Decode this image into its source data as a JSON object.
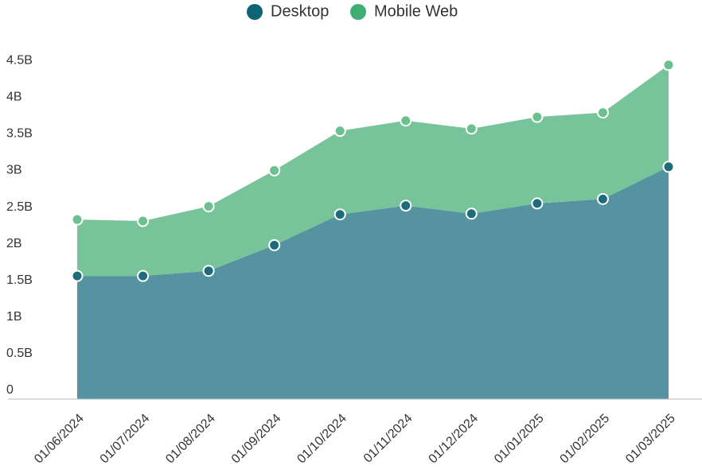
{
  "chart_data": {
    "type": "stacked-area",
    "categories": [
      "01/06/2024",
      "01/07/2024",
      "01/08/2024",
      "01/09/2024",
      "01/10/2024",
      "01/11/2024",
      "01/12/2024",
      "01/01/2025",
      "01/02/2025",
      "01/03/2025"
    ],
    "series": [
      {
        "name": "Desktop",
        "color": "#0f6374",
        "values": [
          1680000000,
          1680000000,
          1750000000,
          2100000000,
          2520000000,
          2640000000,
          2530000000,
          2670000000,
          2730000000,
          3170000000
        ]
      },
      {
        "name": "Mobile Web",
        "color": "#3fae73",
        "values": [
          770000000,
          750000000,
          880000000,
          1020000000,
          1140000000,
          1160000000,
          1160000000,
          1180000000,
          1180000000,
          1390000000
        ]
      }
    ],
    "ylim": [
      0,
      4600000000
    ],
    "yticks": [
      0,
      {
        "value": 500000000,
        "label": "0.5B"
      },
      {
        "value": 1000000000,
        "label": "1B"
      },
      {
        "value": 1500000000,
        "label": "1.5B"
      },
      {
        "value": 2000000000,
        "label": "2B"
      },
      {
        "value": 2500000000,
        "label": "2.5B"
      },
      {
        "value": 3000000000,
        "label": "3B"
      },
      {
        "value": 3500000000,
        "label": "3.5B"
      },
      {
        "value": 4000000000,
        "label": "4B"
      },
      {
        "value": 4500000000,
        "label": "4.5B"
      }
    ],
    "grid": false,
    "legend": "top"
  }
}
